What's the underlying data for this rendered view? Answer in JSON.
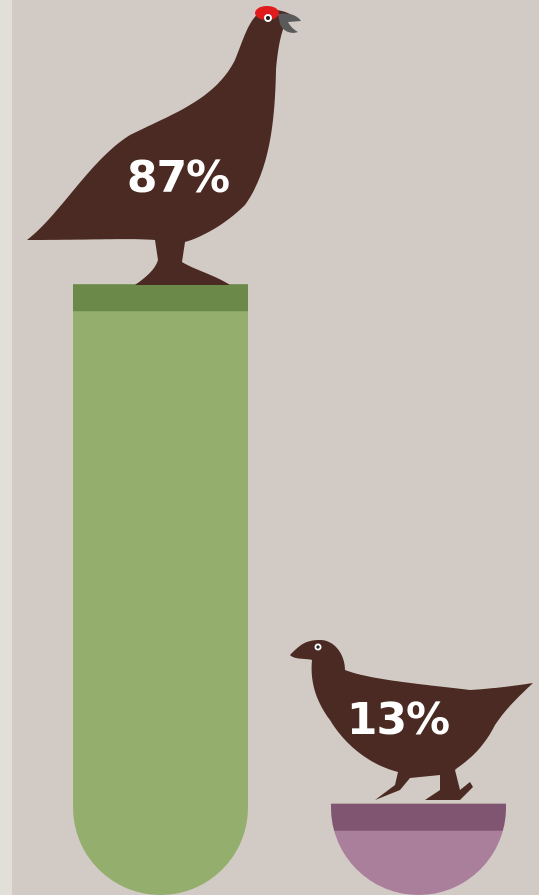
{
  "chart_data": {
    "type": "bar",
    "categories": [
      null,
      null
    ],
    "values": [
      87,
      13
    ],
    "value_labels": [
      "87%",
      "13%"
    ],
    "colors": [
      "#94af6d",
      "#a97f9c"
    ]
  }
}
